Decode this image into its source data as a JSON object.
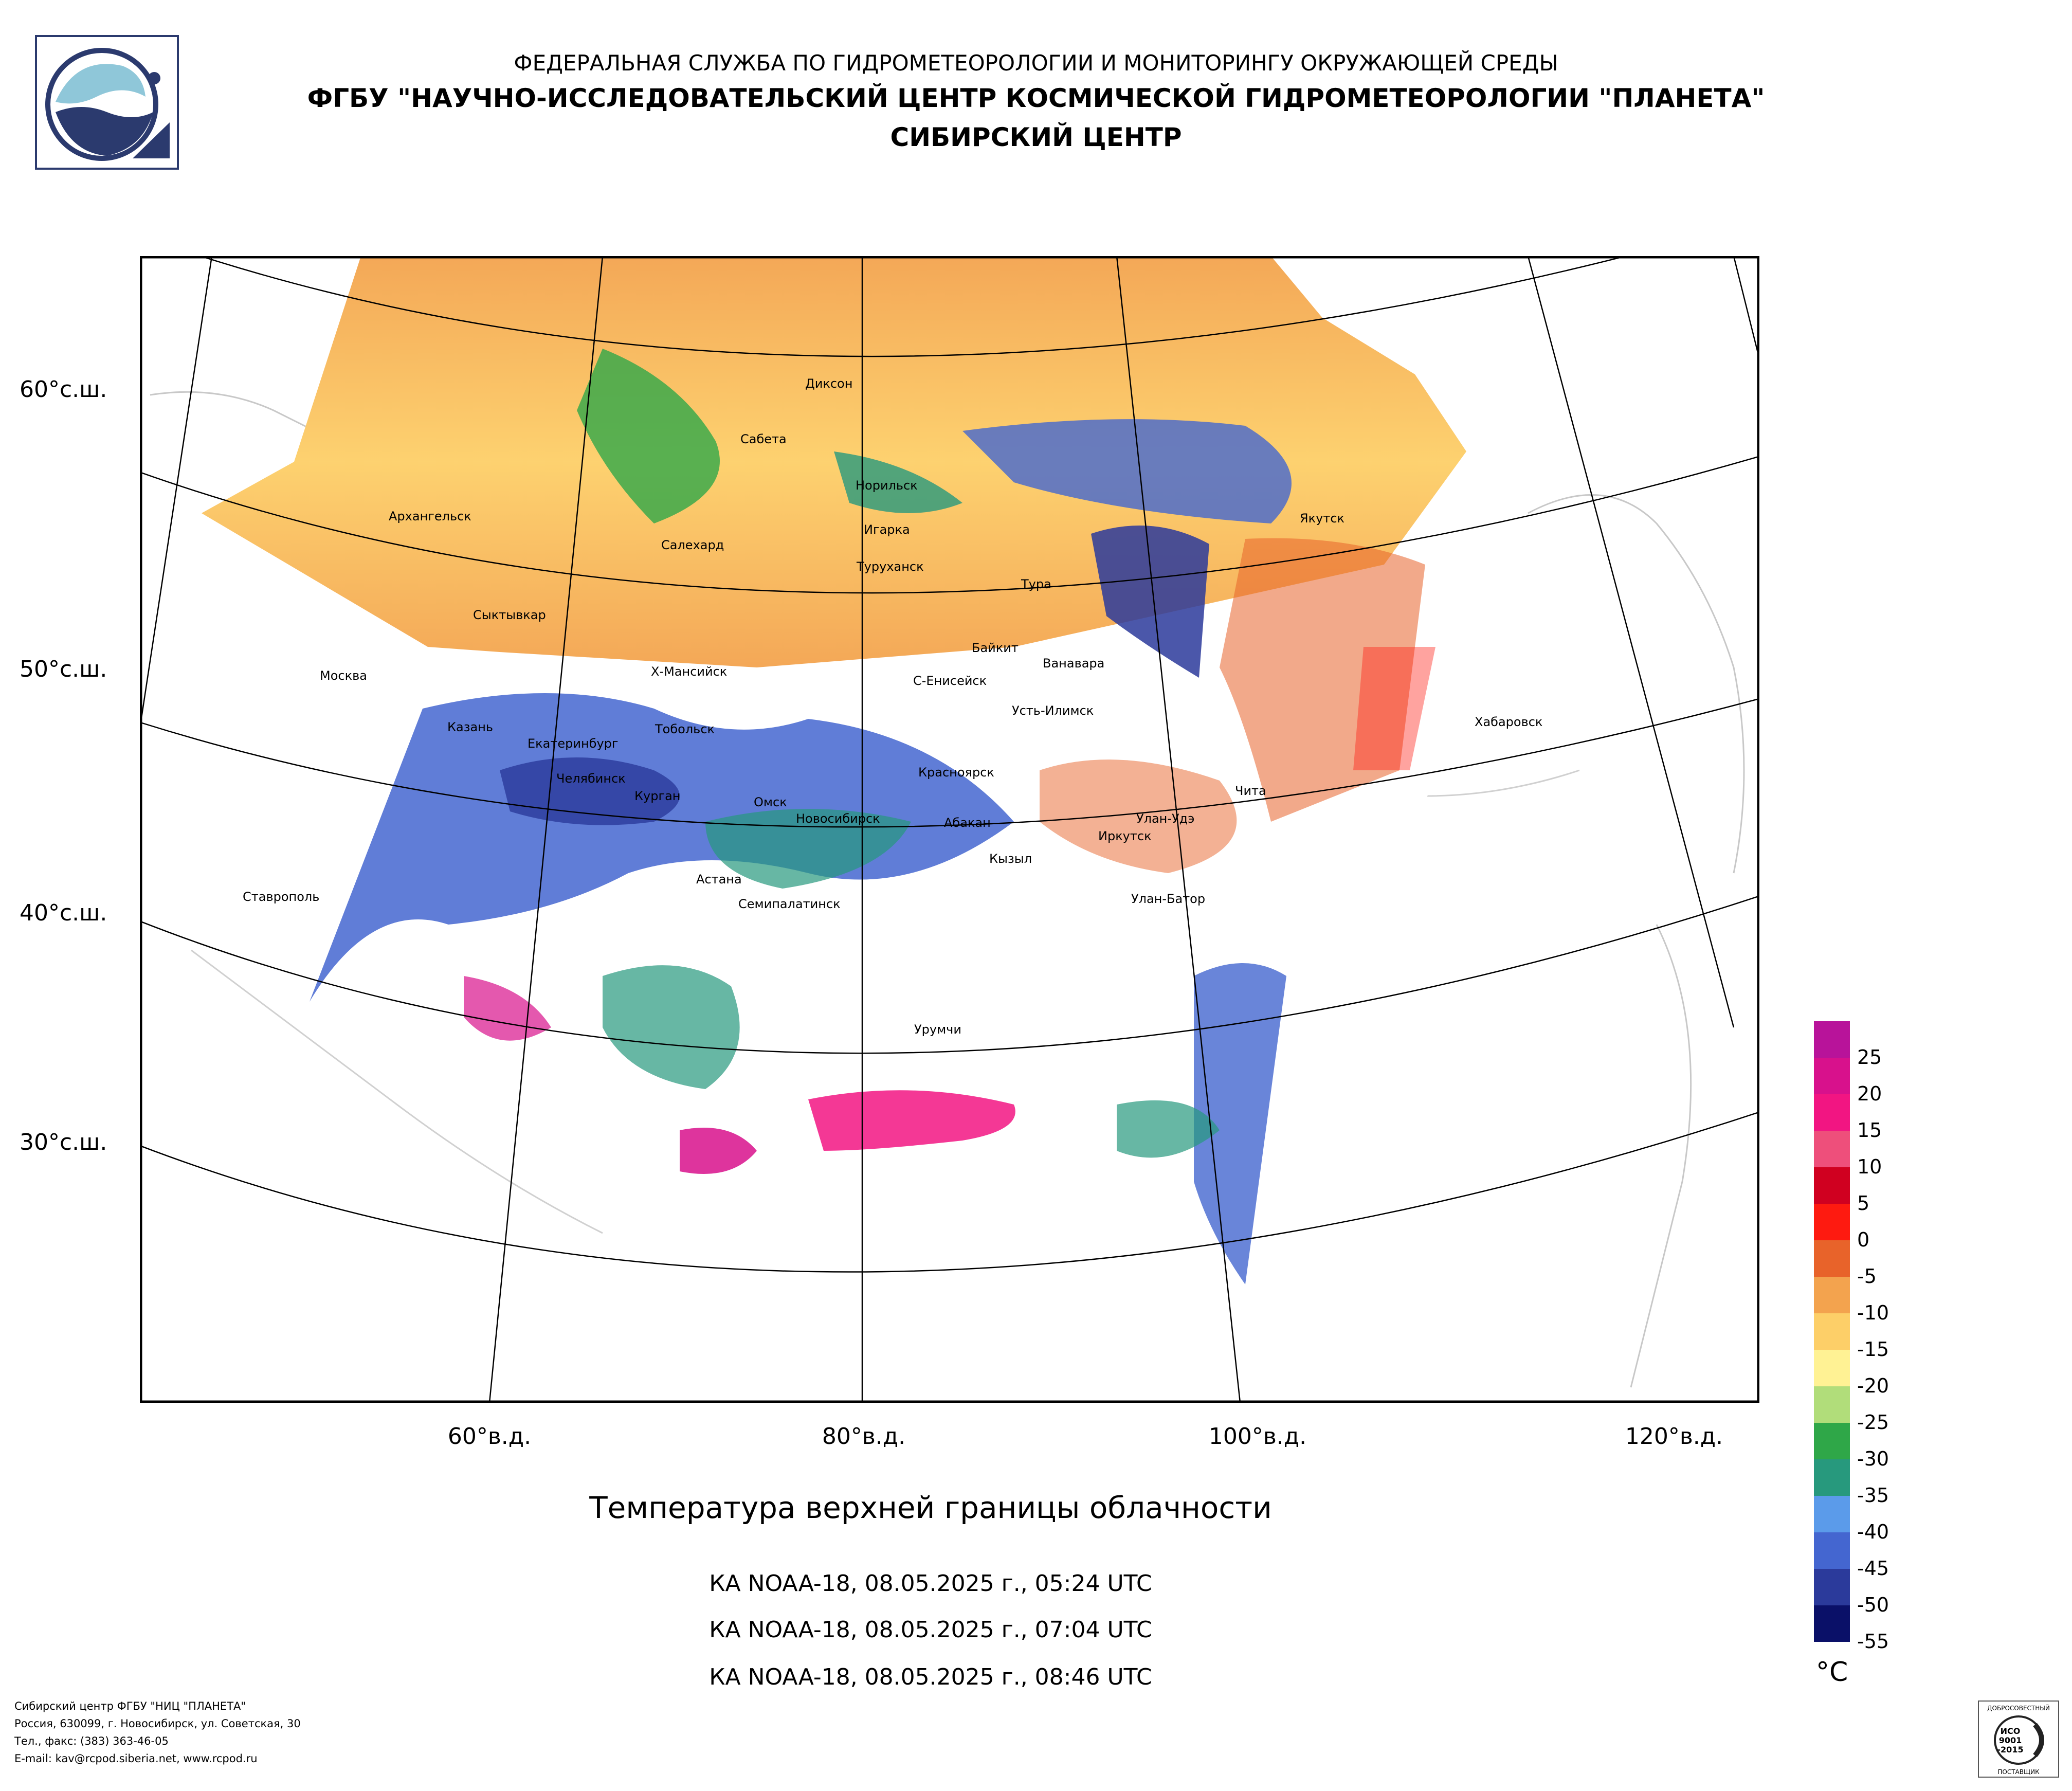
{
  "header": {
    "line1": "ФЕДЕРАЛЬНАЯ СЛУЖБА ПО ГИДРОМЕТЕОРОЛОГИИ И МОНИТОРИНГУ ОКРУЖАЮЩЕЙ СРЕДЫ",
    "line2": "ФГБУ \"НАУЧНО-ИССЛЕДОВАТЕЛЬСКИЙ ЦЕНТР КОСМИЧЕСКОЙ ГИДРОМЕТЕОРОЛОГИИ \"ПЛАНЕТА\"",
    "line3": "СИБИРСКИЙ ЦЕНТР"
  },
  "map": {
    "lat_labels": [
      "60°с.ш.",
      "50°с.ш.",
      "40°с.ш.",
      "30°с.ш."
    ],
    "lon_labels": [
      "60°в.д.",
      "80°в.д.",
      "100°в.д.",
      "120°в.д."
    ],
    "cities": [
      {
        "name": "Диксон"
      },
      {
        "name": "Сабета"
      },
      {
        "name": "Норильск"
      },
      {
        "name": "Архангельск"
      },
      {
        "name": "Салехард"
      },
      {
        "name": "Игарка"
      },
      {
        "name": "Туруханск"
      },
      {
        "name": "Тура"
      },
      {
        "name": "Якутск"
      },
      {
        "name": "Сыктывкар"
      },
      {
        "name": "Байкит"
      },
      {
        "name": "Ванавара"
      },
      {
        "name": "Москва"
      },
      {
        "name": "Х-Мансийск"
      },
      {
        "name": "С-Енисейск"
      },
      {
        "name": "Хабаровск"
      },
      {
        "name": "Казань"
      },
      {
        "name": "Тобольск"
      },
      {
        "name": "Усть-Илимск"
      },
      {
        "name": "Екатеринбург"
      },
      {
        "name": "Красноярск"
      },
      {
        "name": "Челябинск"
      },
      {
        "name": "Курган"
      },
      {
        "name": "Омск"
      },
      {
        "name": "Новосибирск"
      },
      {
        "name": "Абакан"
      },
      {
        "name": "Улан-Удэ"
      },
      {
        "name": "Чита"
      },
      {
        "name": "Иркутск"
      },
      {
        "name": "Кызыл"
      },
      {
        "name": "Астана"
      },
      {
        "name": "Семипалатинск"
      },
      {
        "name": "Ставрополь"
      },
      {
        "name": "Улан-Батор"
      },
      {
        "name": "Урумчи"
      }
    ]
  },
  "title": "Температура верхней границы облачности",
  "passes": [
    "КА NOAA-18, 08.05.2025 г., 05:24 UTC",
    "КА NOAA-18, 08.05.2025 г., 07:04 UTC",
    "КА NOAA-18, 08.05.2025 г., 08:46 UTC"
  ],
  "legend": {
    "unit": "°C",
    "labels": [
      "25",
      "20",
      "15",
      "10",
      "5",
      "0",
      "-5",
      "-10",
      "-15",
      "-20",
      "-25",
      "-30",
      "-35",
      "-40",
      "-45",
      "-50",
      "-55"
    ],
    "colors": [
      "#b8139a",
      "#d8118c",
      "#f21582",
      "#ee4f7b",
      "#d00020",
      "#fe1a10",
      "#e8632a",
      "#f3a34e",
      "#fdcf68",
      "#fff294",
      "#b1dd7a",
      "#2fa748",
      "#27997d",
      "#5b9bea",
      "#4466d0",
      "#2b3a9b",
      "#0a1068"
    ]
  },
  "footer": [
    "Сибирский центр ФГБУ \"НИЦ \"ПЛАНЕТА\"",
    "Россия, 630099, г. Новосибирск, ул. Советская, 30",
    "Тел., факс: (383) 363-46-05",
    "E-mail: kav@rcpod.siberia.net, www.rcpod.ru"
  ],
  "certificate": {
    "top": "ДОБРОСОВЕСТНЫЙ",
    "line1": "ИСО",
    "line2": "9001",
    "line3": "-2015",
    "bottom": "ПОСТАВЩИК"
  },
  "palette": {
    "frame": "#000000",
    "logo_blue": "#2b3a6e",
    "logo_light": "#8fc7d9"
  }
}
